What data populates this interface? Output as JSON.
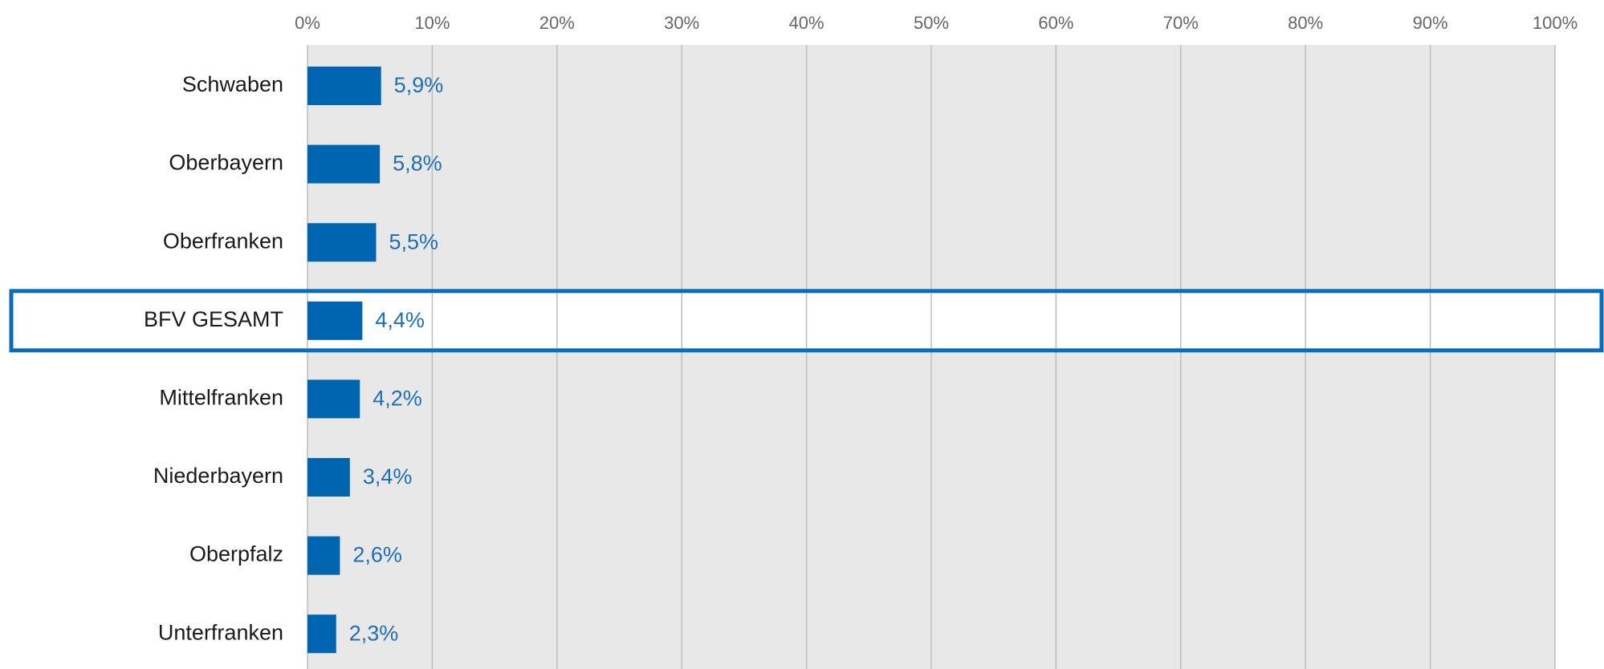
{
  "chart_data": {
    "type": "bar",
    "orientation": "horizontal",
    "categories": [
      "Schwaben",
      "Oberbayern",
      "Oberfranken",
      "BFV GESAMT",
      "Mittelfranken",
      "Niederbayern",
      "Oberpfalz",
      "Unterfranken"
    ],
    "values": [
      5.9,
      5.8,
      5.5,
      4.4,
      4.2,
      3.4,
      2.6,
      2.3
    ],
    "value_labels": [
      "5,9%",
      "5,8%",
      "5,5%",
      "4,4%",
      "4,2%",
      "3,4%",
      "2,6%",
      "2,3%"
    ],
    "xlim": [
      0,
      100
    ],
    "x_ticks": [
      0,
      10,
      20,
      30,
      40,
      50,
      60,
      70,
      80,
      90,
      100
    ],
    "x_tick_labels": [
      "0%",
      "10%",
      "20%",
      "30%",
      "40%",
      "50%",
      "60%",
      "70%",
      "80%",
      "90%",
      "100%"
    ],
    "x_axis_position": "top",
    "grid": true,
    "highlighted_category": "BFV GESAMT",
    "colors": {
      "bar": "#0065b0",
      "data_label": "#1e6fb5",
      "plot_background": "#e8e8e8",
      "gridline": "#bdbdbd",
      "highlight_border": "#0b6cb7",
      "category_label": "#1a1a1a",
      "tick_label": "#666666"
    }
  }
}
